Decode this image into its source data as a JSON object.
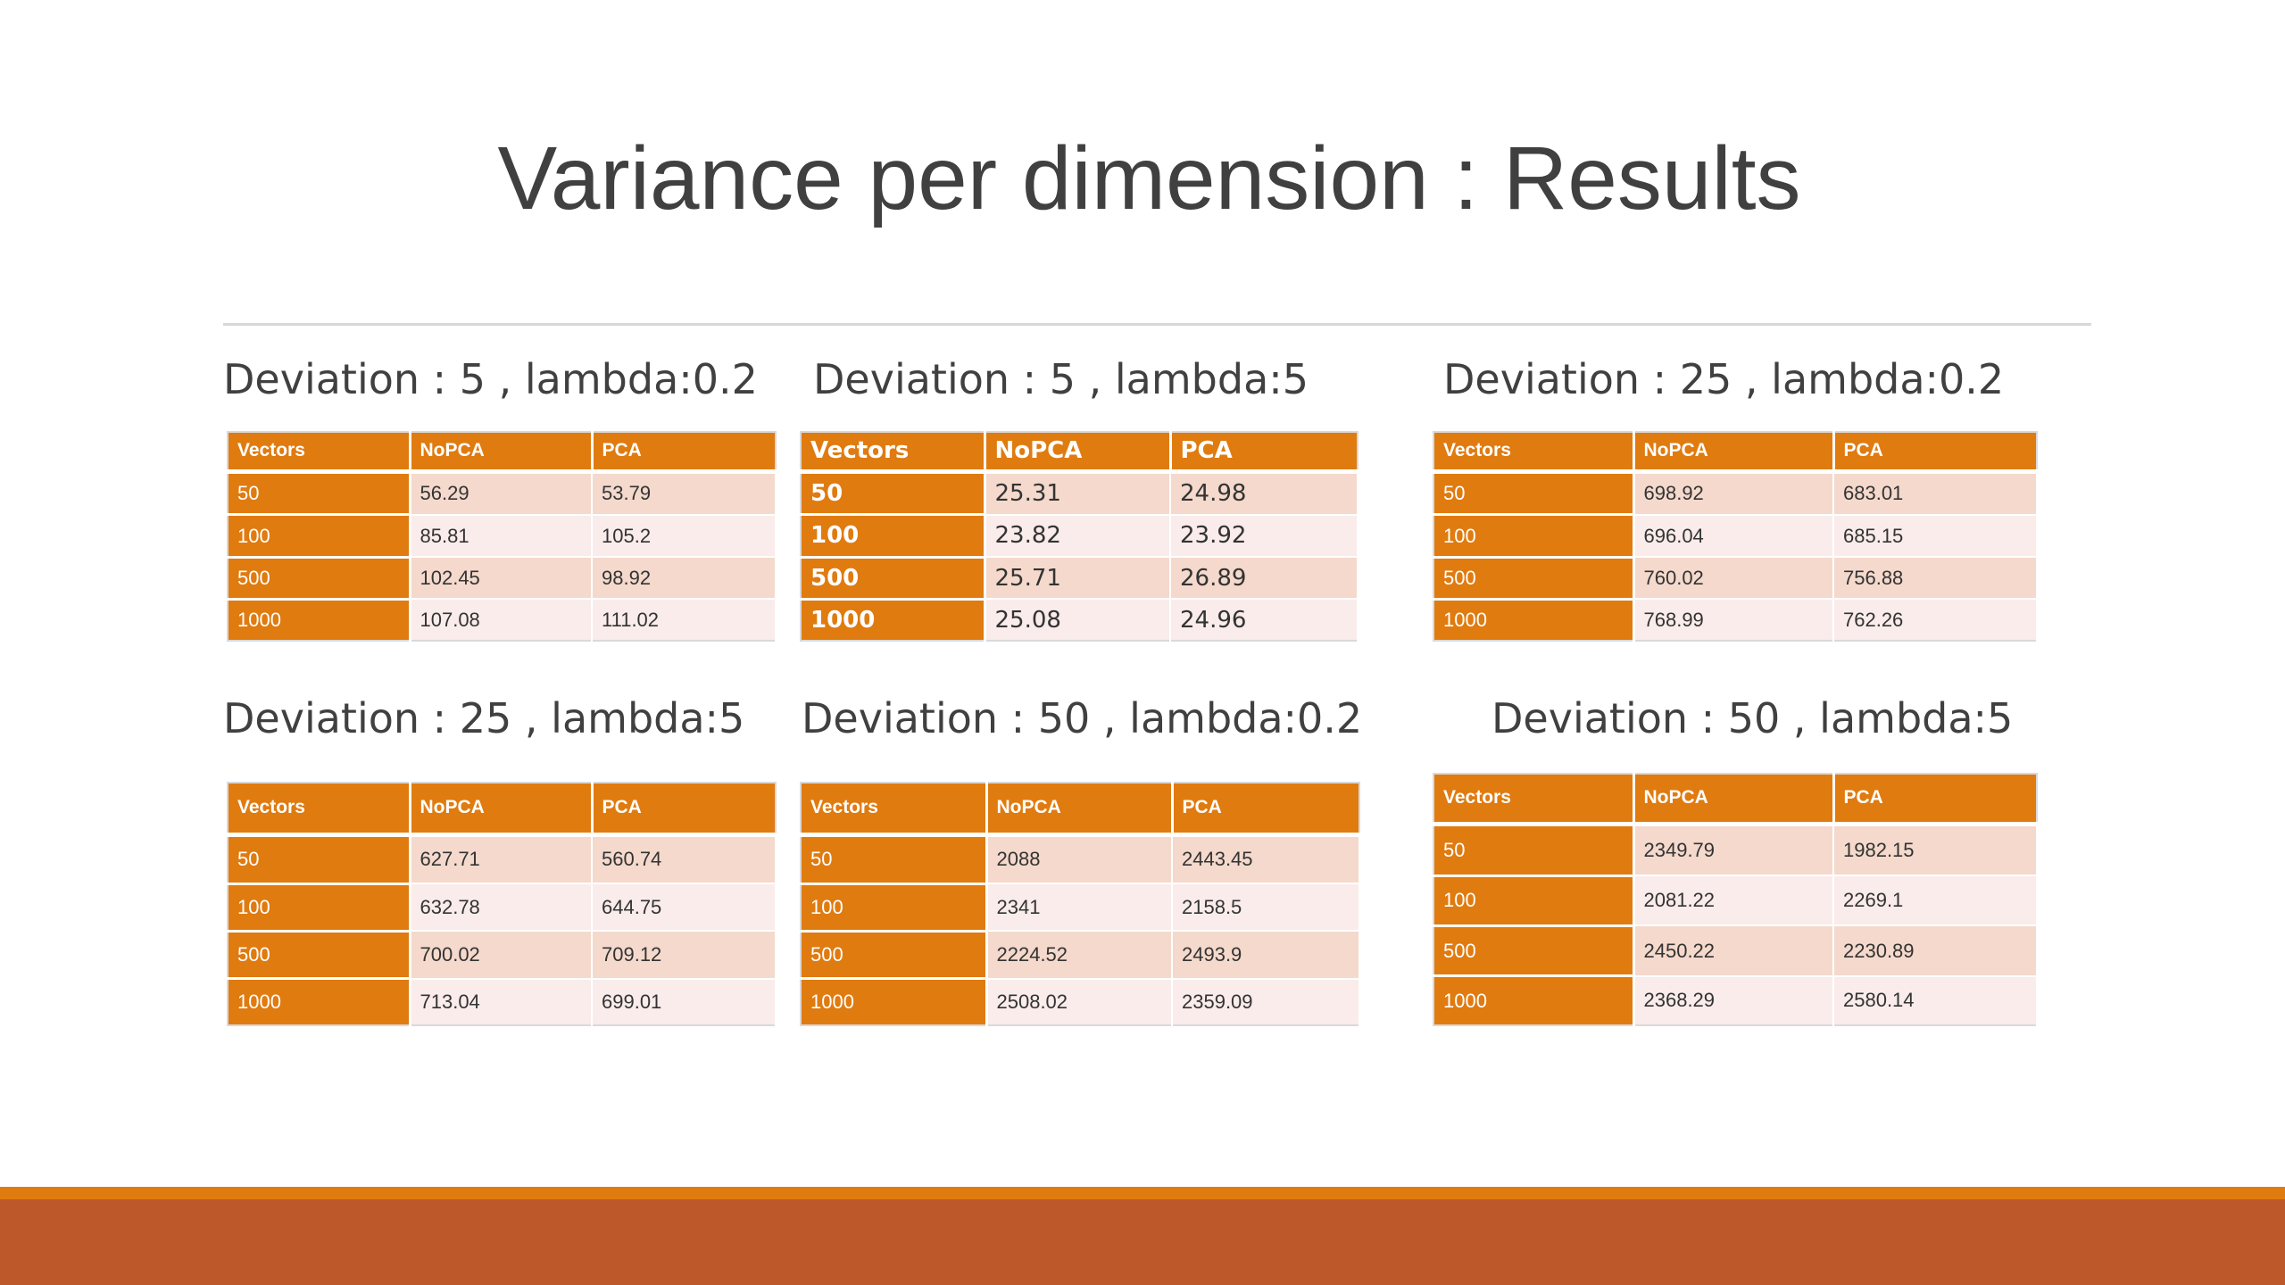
{
  "slide": {
    "title": "Variance per dimension : Results"
  },
  "tables": [
    {
      "caption": "Deviation : 5 , lambda:0.2",
      "headers": [
        "Vectors",
        "NoPCA",
        "PCA"
      ],
      "rows": [
        [
          "50",
          "56.29",
          "53.79"
        ],
        [
          "100",
          "85.81",
          "105.2"
        ],
        [
          "500",
          "102.45",
          "98.92"
        ],
        [
          "1000",
          "107.08",
          "111.02"
        ]
      ]
    },
    {
      "caption": "Deviation : 5 , lambda:5",
      "headers": [
        "Vectors",
        "NoPCA",
        "PCA"
      ],
      "rows": [
        [
          "50",
          "25.31",
          "24.98"
        ],
        [
          "100",
          "23.82",
          "23.92"
        ],
        [
          "500",
          "25.71",
          "26.89"
        ],
        [
          "1000",
          "25.08",
          "24.96"
        ]
      ]
    },
    {
      "caption": "Deviation : 25 , lambda:0.2",
      "headers": [
        "Vectors",
        "NoPCA",
        "PCA"
      ],
      "rows": [
        [
          "50",
          "698.92",
          "683.01"
        ],
        [
          "100",
          "696.04",
          "685.15"
        ],
        [
          "500",
          "760.02",
          "756.88"
        ],
        [
          "1000",
          "768.99",
          "762.26"
        ]
      ]
    },
    {
      "caption": "Deviation : 25 , lambda:5",
      "headers": [
        "Vectors",
        "NoPCA",
        "PCA"
      ],
      "rows": [
        [
          "50",
          "627.71",
          "560.74"
        ],
        [
          "100",
          "632.78",
          "644.75"
        ],
        [
          "500",
          "700.02",
          "709.12"
        ],
        [
          "1000",
          "713.04",
          "699.01"
        ]
      ]
    },
    {
      "caption": "Deviation : 50 , lambda:0.2",
      "headers": [
        "Vectors",
        "NoPCA",
        "PCA"
      ],
      "rows": [
        [
          "50",
          "2088",
          "2443.45"
        ],
        [
          "100",
          "2341",
          "2158.5"
        ],
        [
          "500",
          "2224.52",
          "2493.9"
        ],
        [
          "1000",
          "2508.02",
          "2359.09"
        ]
      ]
    },
    {
      "caption": "Deviation : 50 , lambda:5",
      "headers": [
        "Vectors",
        "NoPCA",
        "PCA"
      ],
      "rows": [
        [
          "50",
          "2349.79",
          "1982.15"
        ],
        [
          "100",
          "2081.22",
          "2269.1"
        ],
        [
          "500",
          "2450.22",
          "2230.89"
        ],
        [
          "1000",
          "2368.29",
          "2580.14"
        ]
      ]
    }
  ],
  "colors": {
    "header_orange": "#e07b10",
    "row_light_1": "#f4d9cc",
    "row_light_2": "#f9ecea",
    "footer_stripe": "#e07b10",
    "footer_band": "#bc582a"
  }
}
